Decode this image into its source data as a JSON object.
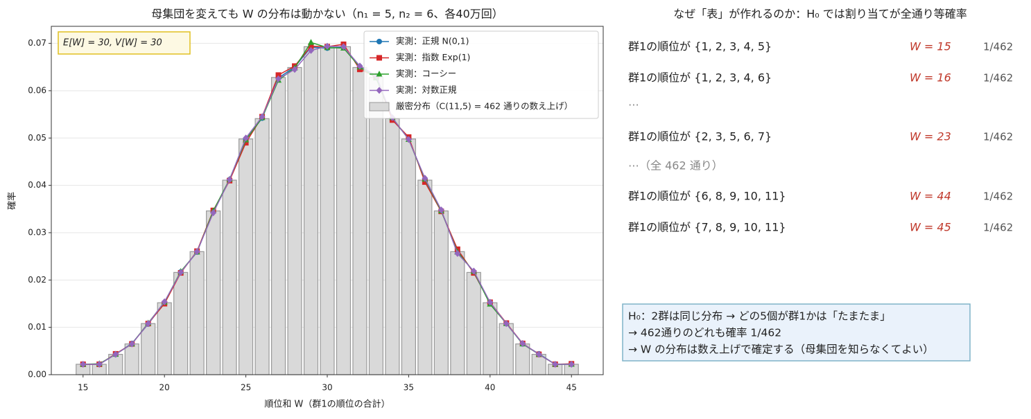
{
  "chart_data": {
    "type": "bar",
    "title": "母集団を変えても W の分布は動かない（n₁ = 5, n₂ = 6、各40万回）",
    "xlabel": "順位和 W（群1の順位の合計）",
    "ylabel": "確率",
    "x": [
      15,
      16,
      17,
      18,
      19,
      20,
      21,
      22,
      23,
      24,
      25,
      26,
      27,
      28,
      29,
      30,
      31,
      32,
      33,
      34,
      35,
      36,
      37,
      38,
      39,
      40,
      41,
      42,
      43,
      44,
      45
    ],
    "name": "厳密分布（C(11,5) = 462 通りの数え上げ）",
    "color": "#d9d9d9",
    "values": [
      0.0022,
      0.0022,
      0.0043,
      0.0065,
      0.0108,
      0.0152,
      0.0216,
      0.026,
      0.0346,
      0.0411,
      0.0498,
      0.0541,
      0.0628,
      0.0649,
      0.0693,
      0.0693,
      0.0693,
      0.0649,
      0.0628,
      0.0541,
      0.0498,
      0.0411,
      0.0346,
      0.026,
      0.0216,
      0.0152,
      0.0108,
      0.0065,
      0.0043,
      0.0022,
      0.0022
    ],
    "series": [
      {
        "name": "実測：正規 N(0,1)",
        "color": "#1f77b4",
        "marker": "circle",
        "values": [
          0.0022,
          0.0022,
          0.0043,
          0.0066,
          0.0107,
          0.0152,
          0.0217,
          0.0259,
          0.0345,
          0.0412,
          0.0497,
          0.0542,
          0.0627,
          0.065,
          0.0692,
          0.069,
          0.0692,
          0.0651,
          0.0629,
          0.054,
          0.0499,
          0.0412,
          0.0347,
          0.0261,
          0.0216,
          0.0151,
          0.0108,
          0.0065,
          0.0044,
          0.0022,
          0.0022
        ]
      },
      {
        "name": "実測：指数 Exp(1)",
        "color": "#d62728",
        "marker": "square",
        "values": [
          0.0022,
          0.0022,
          0.0044,
          0.0065,
          0.0108,
          0.015,
          0.0215,
          0.0261,
          0.0347,
          0.041,
          0.049,
          0.0545,
          0.0633,
          0.0652,
          0.0694,
          0.0693,
          0.0698,
          0.0645,
          0.063,
          0.0538,
          0.0502,
          0.0407,
          0.0345,
          0.0265,
          0.0215,
          0.0153,
          0.0109,
          0.0066,
          0.0043,
          0.0022,
          0.0023
        ]
      },
      {
        "name": "実測：コーシー",
        "color": "#2ca02c",
        "marker": "triangle",
        "values": [
          0.0022,
          0.0023,
          0.0043,
          0.0065,
          0.0109,
          0.0153,
          0.0218,
          0.0259,
          0.0346,
          0.0413,
          0.0496,
          0.0543,
          0.0622,
          0.0648,
          0.0702,
          0.0691,
          0.069,
          0.065,
          0.0627,
          0.0543,
          0.0497,
          0.0413,
          0.0346,
          0.0259,
          0.0218,
          0.0149,
          0.0108,
          0.0065,
          0.0043,
          0.0022,
          0.0022
        ]
      },
      {
        "name": "実測：対数正規",
        "color": "#9467bd",
        "marker": "diamond",
        "values": [
          0.0022,
          0.0022,
          0.0043,
          0.0065,
          0.0108,
          0.0154,
          0.0216,
          0.026,
          0.0342,
          0.0412,
          0.05,
          0.0545,
          0.0625,
          0.0645,
          0.0685,
          0.0694,
          0.0693,
          0.0652,
          0.0632,
          0.0543,
          0.0497,
          0.0415,
          0.0348,
          0.0256,
          0.0219,
          0.0153,
          0.0108,
          0.0066,
          0.0043,
          0.0022,
          0.0022
        ]
      }
    ],
    "xlim": [
      13.05,
      46.95
    ],
    "ylim": [
      0,
      0.0736
    ],
    "xticks": [
      15,
      20,
      25,
      30,
      35,
      40,
      45
    ],
    "yticks": [
      {
        "value": 0,
        "label": "0.00"
      },
      0.01,
      0.02,
      0.03,
      0.04,
      0.05,
      0.06,
      0.07
    ],
    "grid": true,
    "legend": "upper right",
    "annotation": "E[W] = 30, V[W] = 30"
  },
  "panel": {
    "title": "なぜ「表」が作れるのか：H₀ では割り当てが全通り等確率",
    "rows": [
      {
        "label": "群1の順位が {1, 2, 3, 4, 5}",
        "w": "W = 15",
        "p": "1/462"
      },
      {
        "label": "群1の順位が {1, 2, 3, 4, 6}",
        "w": "W = 16",
        "p": "1/462"
      },
      {
        "label": "⋯"
      },
      {
        "label": "群1の順位が {2, 3, 5, 6, 7}",
        "w": "W = 23",
        "p": "1/462"
      },
      {
        "label": "⋯（全 462 通り）"
      },
      {
        "label": "群1の順位が {6, 8, 9, 10, 11}",
        "w": "W = 44",
        "p": "1/462"
      },
      {
        "label": "群1の順位が {7, 8, 9, 10, 11}",
        "w": "W = 45",
        "p": "1/462"
      }
    ],
    "note": [
      "H₀：2群は同じ分布 → どの5個が群1かは「たまたま」",
      "→ 462通りのどれも確率 1/462",
      "→ W の分布は数え上げで確定する（母集団を知らなくてよい）"
    ]
  }
}
